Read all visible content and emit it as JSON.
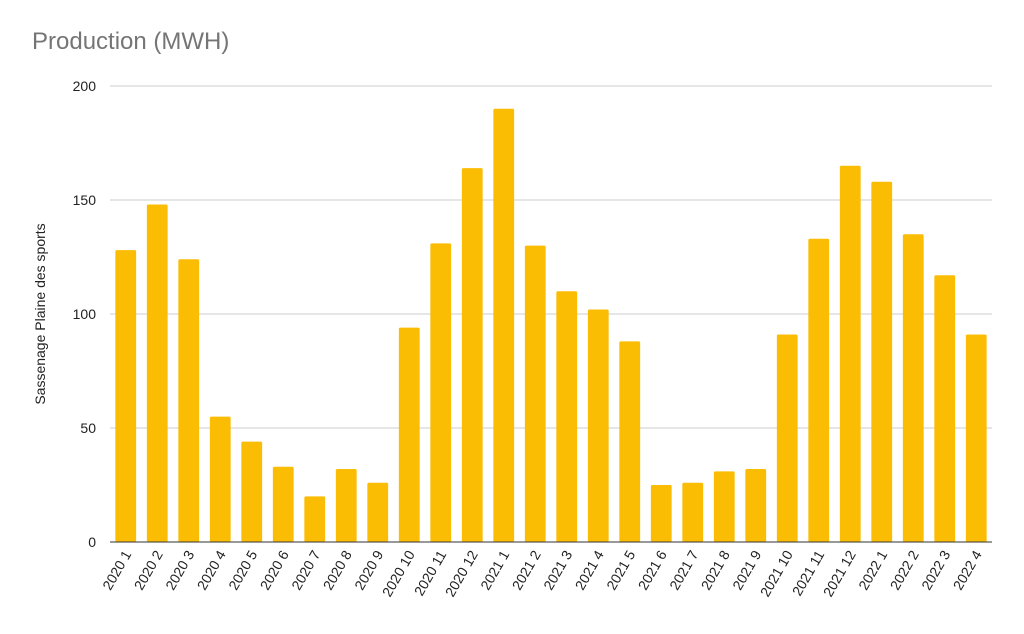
{
  "chart_data": {
    "type": "bar",
    "title": "Production (MWH)",
    "xlabel": "",
    "ylabel": "Sassenage Plaine des sports",
    "ylim": [
      0,
      200
    ],
    "yticks": [
      0,
      50,
      100,
      150,
      200
    ],
    "grid": true,
    "legend": "none",
    "categories": [
      "2020 1",
      "2020 2",
      "2020 3",
      "2020 4",
      "2020 5",
      "2020 6",
      "2020 7",
      "2020 8",
      "2020 9",
      "2020 10",
      "2020 11",
      "2020 12",
      "2021 1",
      "2021 2",
      "2021 3",
      "2021 4",
      "2021 5",
      "2021 6",
      "2021 7",
      "2021 8",
      "2021 9",
      "2021 10",
      "2021 11",
      "2021 12",
      "2022 1",
      "2022 2",
      "2022 3",
      "2022 4"
    ],
    "values": [
      128,
      148,
      124,
      55,
      44,
      33,
      20,
      32,
      26,
      94,
      131,
      164,
      190,
      130,
      110,
      102,
      88,
      25,
      26,
      31,
      32,
      91,
      133,
      165,
      158,
      135,
      117,
      91
    ],
    "colors": {
      "bar": "#fbbc04",
      "grid": "#cccccc",
      "axis": "#333333",
      "text": "#222222",
      "title": "#757575"
    }
  }
}
